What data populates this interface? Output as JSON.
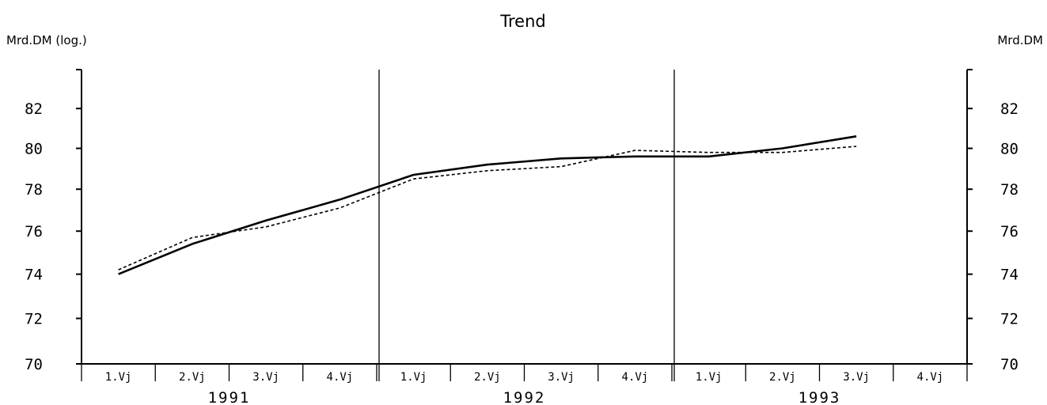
{
  "chart_data": {
    "type": "line",
    "title": "Trend",
    "ylabel_left": "Mrd.DM (log.)",
    "ylabel_right": "Mrd.DM",
    "y_scale": "log",
    "ylim": [
      70,
      84
    ],
    "yticks": [
      "70",
      "72",
      "74",
      "76",
      "78",
      "80",
      "82"
    ],
    "x_quarter_labels": [
      "1.Vj",
      "2.Vj",
      "3.Vj",
      "4.Vj",
      "1.Vj",
      "2.Vj",
      "3.Vj",
      "4.Vj",
      "1.Vj",
      "2.Vj",
      "3.Vj",
      "4.Vj"
    ],
    "x_year_labels": [
      "1991",
      "1992",
      "1993"
    ],
    "x": [
      0.5,
      1.5,
      2.5,
      3.5,
      4.5,
      5.5,
      6.5,
      7.5,
      8.5,
      9.5,
      10.5
    ],
    "series": [
      {
        "style": "solid",
        "values": [
          74.0,
          75.4,
          76.5,
          77.5,
          78.7,
          79.2,
          79.5,
          79.6,
          79.6,
          80.0,
          80.6
        ]
      },
      {
        "style": "dashed",
        "values": [
          74.2,
          75.7,
          76.2,
          77.1,
          78.5,
          78.9,
          79.1,
          79.9,
          79.8,
          79.8,
          80.1
        ]
      }
    ],
    "grid": false
  }
}
